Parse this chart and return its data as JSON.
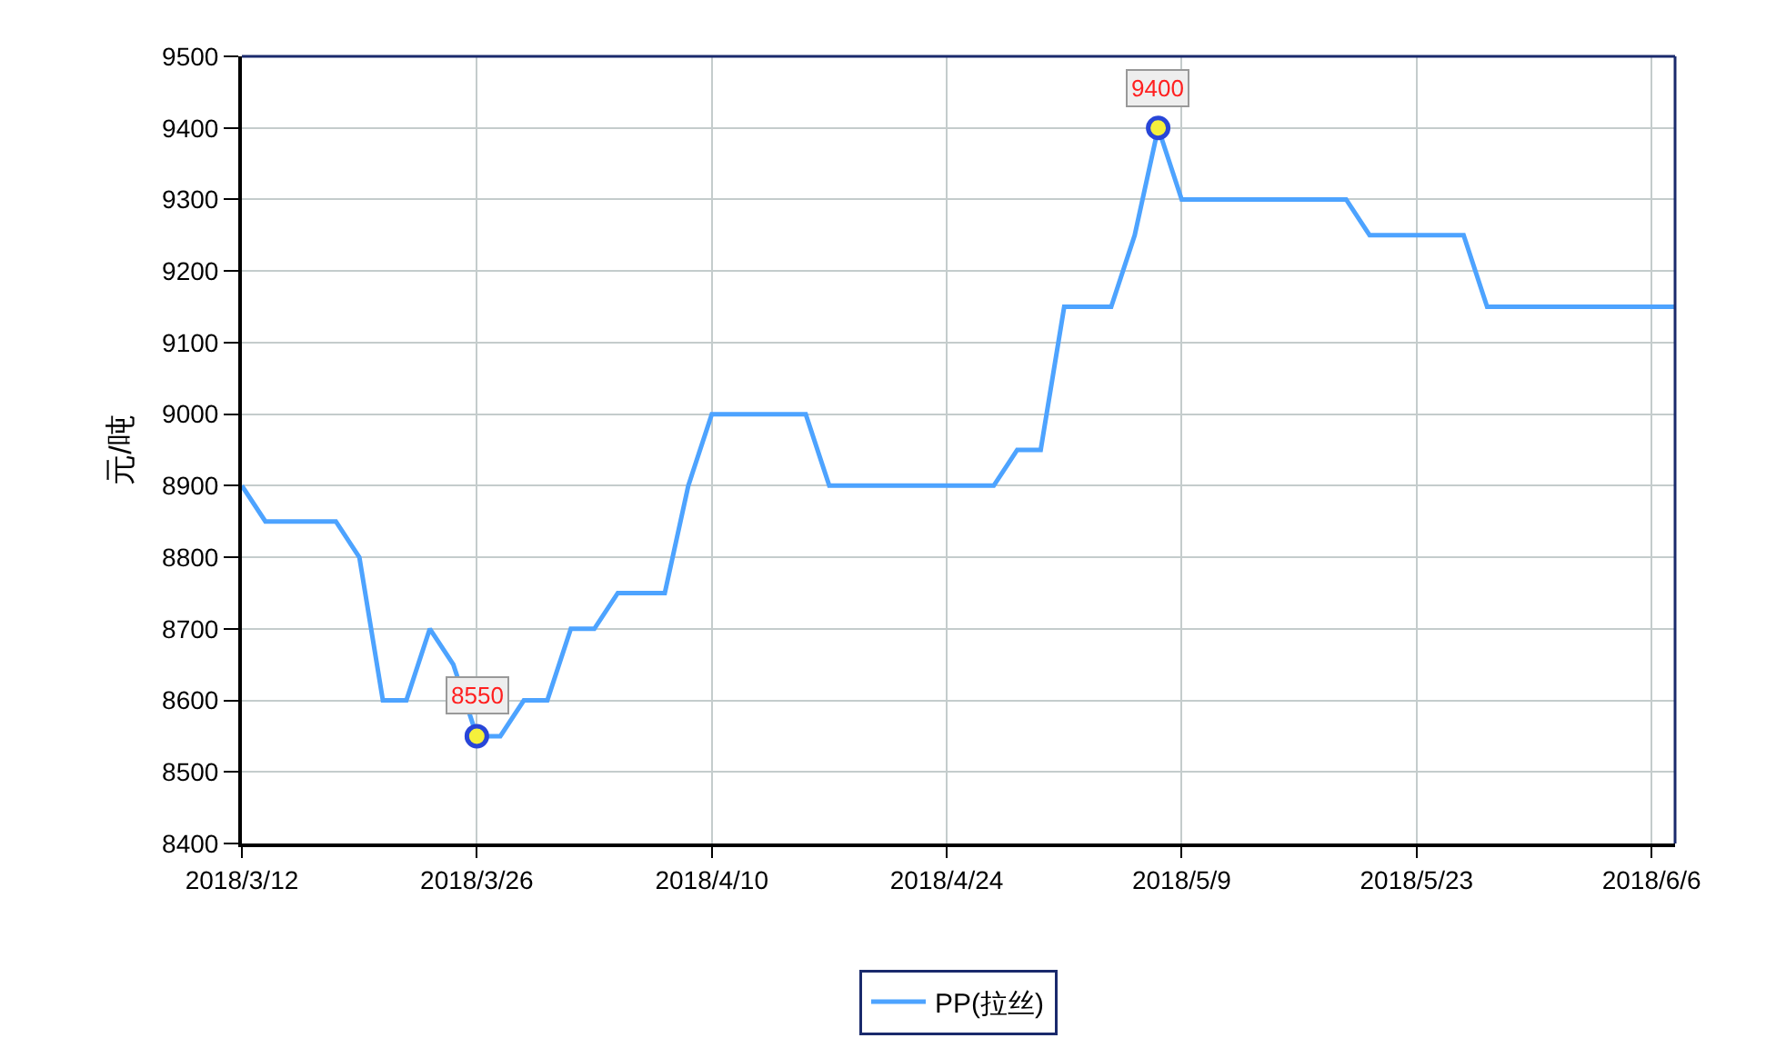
{
  "chart_data": {
    "type": "line",
    "ylabel": "元/吨",
    "categories": [
      "2018/3/12",
      null,
      null,
      null,
      null,
      null,
      null,
      null,
      null,
      null,
      "2018/3/26",
      null,
      null,
      null,
      null,
      null,
      null,
      null,
      null,
      null,
      "2018/4/10",
      null,
      null,
      null,
      null,
      null,
      null,
      null,
      null,
      null,
      "2018/4/24",
      null,
      null,
      null,
      null,
      null,
      null,
      null,
      null,
      null,
      "2018/5/9",
      null,
      null,
      null,
      null,
      null,
      null,
      null,
      null,
      null,
      "2018/5/23",
      null,
      null,
      null,
      null,
      null,
      null,
      null,
      null,
      null,
      "2018/6/6",
      null
    ],
    "series": [
      {
        "name": "PP(拉丝)",
        "color": "#4da3ff",
        "values": [
          8900,
          8850,
          8850,
          8850,
          8850,
          8800,
          8600,
          8600,
          8700,
          8650,
          8550,
          8550,
          8600,
          8600,
          8700,
          8700,
          8750,
          8750,
          8750,
          8900,
          9000,
          9000,
          9000,
          9000,
          9000,
          8900,
          8900,
          8900,
          8900,
          8900,
          8900,
          8900,
          8900,
          8950,
          8950,
          9150,
          9150,
          9150,
          9250,
          9400,
          9300,
          9300,
          9300,
          9300,
          9300,
          9300,
          9300,
          9300,
          9250,
          9250,
          9250,
          9250,
          9250,
          9150,
          9150,
          9150,
          9150,
          9150,
          9150,
          9150,
          9150,
          9150
        ],
        "value_labels": [
          null,
          null,
          null,
          null,
          null,
          null,
          null,
          null,
          null,
          null,
          "8550",
          null,
          null,
          null,
          null,
          null,
          null,
          null,
          null,
          null,
          null,
          null,
          null,
          null,
          null,
          null,
          null,
          null,
          null,
          null,
          null,
          null,
          null,
          null,
          null,
          null,
          null,
          null,
          null,
          "9400",
          null,
          null,
          null,
          null,
          null,
          null,
          null,
          null,
          null,
          null,
          null,
          null,
          null,
          null,
          null,
          null,
          null,
          null,
          null,
          null,
          null,
          null
        ]
      }
    ],
    "ylim": [
      8400,
      9500
    ],
    "yticks": [
      8400,
      8500,
      8600,
      8700,
      8800,
      8900,
      9000,
      9100,
      9200,
      9300,
      9400,
      9500
    ],
    "grid": true,
    "legend": "bottom",
    "marker": "none",
    "line_style": "solid"
  }
}
